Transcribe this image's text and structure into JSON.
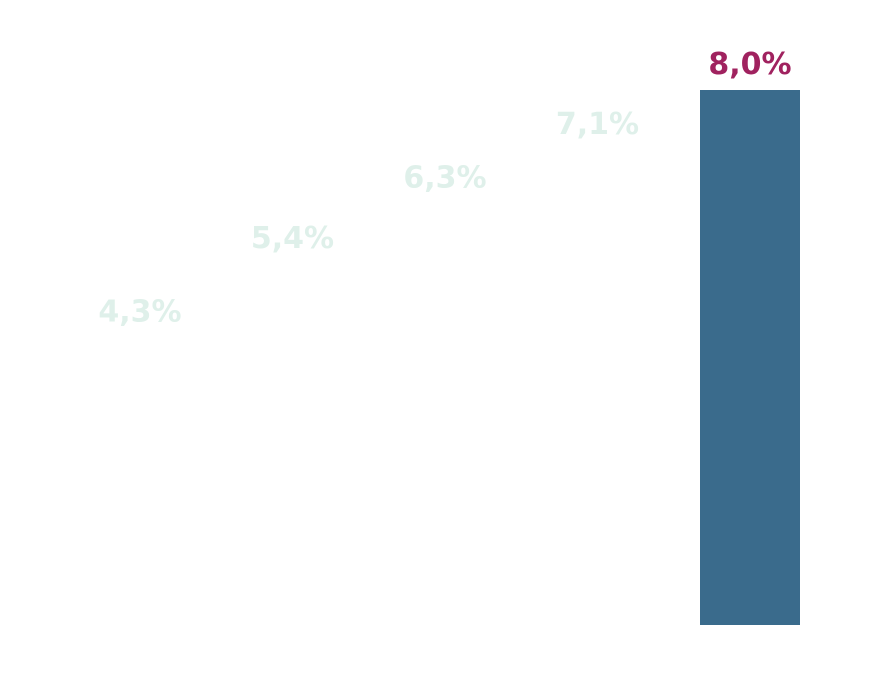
{
  "chart_data": {
    "type": "bar",
    "categories": [
      "",
      "",
      "",
      "",
      ""
    ],
    "values": [
      4.3,
      5.4,
      6.3,
      7.1,
      8.0
    ],
    "data_labels": [
      "4,3%",
      "5,4%",
      "6,3%",
      "7,1%",
      "8,0%"
    ],
    "title": "",
    "xlabel": "",
    "ylabel": "",
    "ylim": [
      0,
      8.0
    ],
    "grid": false,
    "legend": "none",
    "highlight_index": 4,
    "colors": {
      "bar_highlight": "#3a6b8c",
      "bar_faded": "#ffffff",
      "label_highlight": "#a0225f",
      "label_faded": "#dff0ea",
      "background": "#ffffff"
    }
  }
}
